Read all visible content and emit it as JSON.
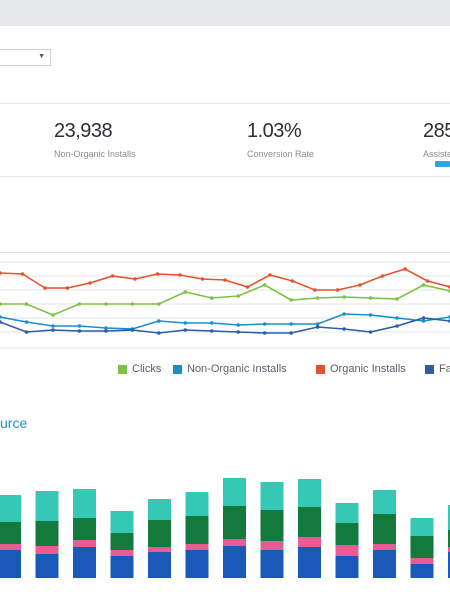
{
  "dropdown": {
    "value": ""
  },
  "metrics": [
    {
      "value": "23,938",
      "label": "Non-Organic Installs"
    },
    {
      "value": "1.03%",
      "label": "Conversion Rate"
    },
    {
      "value": "285",
      "label": "Assiste"
    }
  ],
  "line_chart_legend": [
    {
      "label": "Clicks",
      "color": "#7dc242"
    },
    {
      "label": "Non-Organic Installs",
      "color": "#1a8fce"
    },
    {
      "label": "Organic Installs",
      "color": "#e4532f"
    },
    {
      "label": "Fa",
      "color": "#2b5ea8"
    }
  ],
  "section_title": "urce",
  "colors": {
    "teal": "#35c9b5",
    "dark_green": "#137a3e",
    "pink": "#e85b95",
    "blue": "#1a59b8",
    "accent": "#2aa7e2"
  },
  "chart_data": [
    {
      "type": "line",
      "series": [
        {
          "name": "Organic Installs",
          "color": "#e4532f",
          "values": [
            273,
            274,
            288,
            288,
            283,
            276,
            279,
            274,
            275,
            279,
            280,
            287,
            275,
            281,
            290,
            290,
            285,
            276,
            269,
            281,
            287
          ]
        },
        {
          "name": "Clicks",
          "color": "#7dc242",
          "values": [
            304,
            304,
            315,
            304,
            304,
            304,
            304,
            292,
            298,
            296,
            285,
            300,
            298,
            297,
            298,
            299,
            285,
            291
          ]
        },
        {
          "name": "Non-Organic Installs",
          "color": "#1a8fce",
          "values": [
            317,
            322,
            326,
            326,
            328,
            329,
            321,
            323,
            323,
            325,
            324,
            324,
            324,
            314,
            315,
            318,
            321,
            317
          ]
        },
        {
          "name": "Fa",
          "color": "#2b5ea8",
          "values": [
            322,
            332,
            330,
            331,
            331,
            330,
            333,
            330,
            331,
            332,
            333,
            333,
            327,
            329,
            332,
            326,
            318,
            321
          ]
        }
      ]
    },
    {
      "type": "bar",
      "stacked": true,
      "series": [
        {
          "name": "blue",
          "color": "#1a59b8",
          "values": [
            28,
            24,
            31,
            22,
            26,
            28,
            32,
            28,
            31,
            22,
            28,
            14,
            26,
            36,
            27
          ]
        },
        {
          "name": "pink",
          "color": "#e85b95",
          "values": [
            6,
            8,
            7,
            6,
            5,
            6,
            7,
            9,
            10,
            11,
            6,
            6,
            5,
            8,
            8
          ]
        },
        {
          "name": "dark_green",
          "color": "#137a3e",
          "values": [
            22,
            25,
            22,
            17,
            27,
            28,
            33,
            31,
            30,
            22,
            30,
            22,
            17,
            24,
            27
          ]
        },
        {
          "name": "teal",
          "color": "#35c9b5",
          "values": [
            27,
            30,
            29,
            22,
            21,
            24,
            28,
            28,
            28,
            20,
            24,
            18,
            25,
            34,
            28
          ]
        }
      ]
    }
  ]
}
